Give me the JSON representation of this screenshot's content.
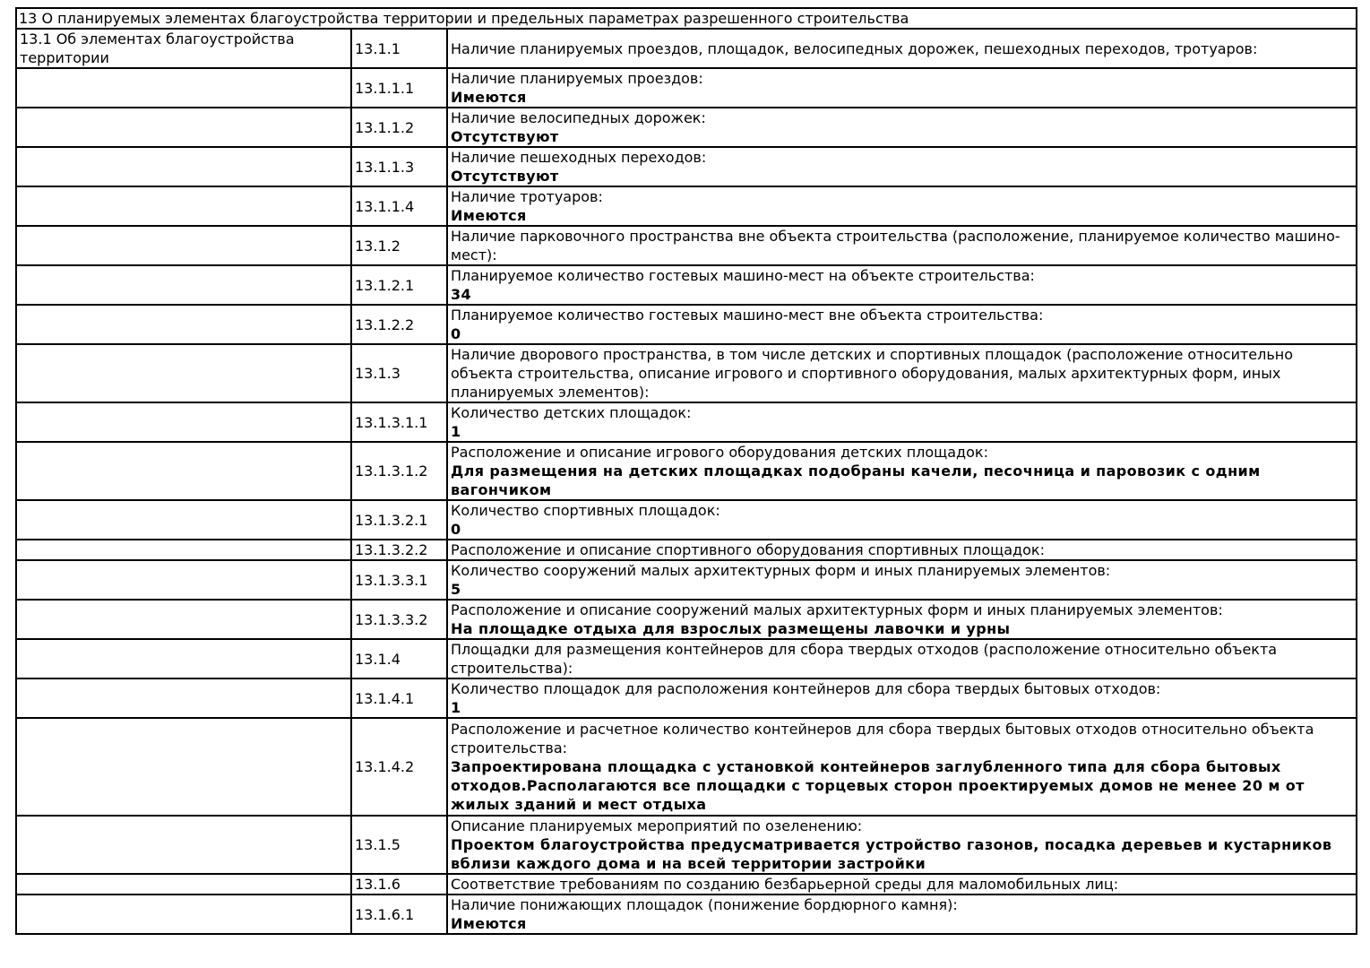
{
  "document": {
    "section_header": "13 О планируемых элементах благоустройства территории и предельных параметрах разрешенного строительства",
    "colors": {
      "background": "#ffffff",
      "text": "#000000",
      "border": "#000000"
    },
    "table": {
      "rows": [
        {
          "sidebar": "13.1 Об элементах благоустройства территории",
          "code": "13.1.1",
          "label": "Наличие планируемых проездов, площадок, велосипедных дорожек, пешеходных переходов, тротуаров:",
          "value": ""
        },
        {
          "sidebar": "",
          "code": "13.1.1.1",
          "label": "Наличие планируемых проездов:",
          "value": "Имеются"
        },
        {
          "sidebar": "",
          "code": "13.1.1.2",
          "label": "Наличие велосипедных дорожек:",
          "value": "Отсутствуют"
        },
        {
          "sidebar": "",
          "code": "13.1.1.3",
          "label": "Наличие пешеходных переходов:",
          "value": "Отсутствуют"
        },
        {
          "sidebar": "",
          "code": "13.1.1.4",
          "label": "Наличие тротуаров:",
          "value": "Имеются"
        },
        {
          "sidebar": "",
          "code": "13.1.2",
          "label": "Наличие парковочного пространства вне объекта строительства (расположение, планируемое количество машино-мест):",
          "value": ""
        },
        {
          "sidebar": "",
          "code": "13.1.2.1",
          "label": "Планируемое количество гостевых машино-мест на объекте строительства:",
          "value": "34"
        },
        {
          "sidebar": "",
          "code": "13.1.2.2",
          "label": "Планируемое количество гостевых машино-мест вне объекта строительства:",
          "value": "0"
        },
        {
          "sidebar": "",
          "code": "13.1.3",
          "label": "Наличие дворового пространства, в том числе детских и спортивных площадок (расположение относительно объекта строительства, описание игрового и спортивного оборудования, малых архитектурных форм, иных планируемых элементов):",
          "value": ""
        },
        {
          "sidebar": "",
          "code": "13.1.3.1.1",
          "label": "Количество детских площадок:",
          "value": "1"
        },
        {
          "sidebar": "",
          "code": "13.1.3.1.2",
          "label": "Расположение и описание игрового оборудования детских площадок:",
          "value": "Для размещения на детских площадках подобраны качели, песочница и паровозик с одним вагончиком"
        },
        {
          "sidebar": "",
          "code": "13.1.3.2.1",
          "label": "Количество спортивных площадок:",
          "value": "0"
        },
        {
          "sidebar": "",
          "code": "13.1.3.2.2",
          "label": "Расположение и описание спортивного оборудования спортивных площадок:",
          "value": ""
        },
        {
          "sidebar": "",
          "code": "13.1.3.3.1",
          "label": "Количество сооружений малых архитектурных форм и иных планируемых элементов:",
          "value": "5"
        },
        {
          "sidebar": "",
          "code": "13.1.3.3.2",
          "label": "Расположение и описание сооружений малых архитектурных форм и иных планируемых элементов:",
          "value": "На площадке отдыха для взрослых размещены лавочки и урны"
        },
        {
          "sidebar": "",
          "code": "13.1.4",
          "label": "Площадки для размещения контейнеров для сбора твердых отходов (расположение относительно объекта строительства):",
          "value": ""
        },
        {
          "sidebar": "",
          "code": "13.1.4.1",
          "label": "Количество площадок для расположения контейнеров для сбора твердых бытовых отходов:",
          "value": "1"
        },
        {
          "sidebar": "",
          "code": "13.1.4.2",
          "label": "Расположение и расчетное количество контейнеров для сбора твердых бытовых отходов относительно объекта строительства:",
          "value": "Запроектирована площадка с установкой контейнеров заглубленного типа для сбора бытовых отходов.Располагаются все площадки с торцевых сторон проектируемых домов не менее 20 м от жилых зданий и мест отдыха"
        },
        {
          "sidebar": "",
          "code": "13.1.5",
          "label": "Описание планируемых мероприятий по озеленению:",
          "value": "Проектом благоустройства предусматривается устройство газонов, посадка деревьев и кустарников вблизи каждого дома и на всей территории застройки"
        },
        {
          "sidebar": "",
          "code": "13.1.6",
          "label": "Соответствие требованиям по созданию безбарьерной среды для маломобильных лиц:",
          "value": ""
        },
        {
          "sidebar": "",
          "code": "13.1.6.1",
          "label": "Наличие понижающих площадок (понижение бордюрного камня):",
          "value": "Имеются"
        }
      ]
    }
  }
}
